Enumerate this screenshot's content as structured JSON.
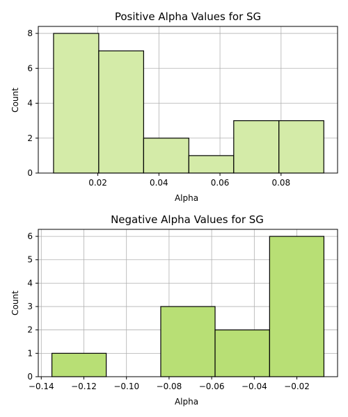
{
  "chart_data": [
    {
      "type": "bar",
      "title": "Positive Alpha Values for SG",
      "xlabel": "Alpha",
      "ylabel": "Count",
      "bin_edges": [
        0.0055,
        0.0203,
        0.035,
        0.0498,
        0.0645,
        0.0793,
        0.094
      ],
      "values": [
        8,
        7,
        2,
        1,
        3,
        3
      ],
      "xlim": [
        0.0005,
        0.0985
      ],
      "ylim": [
        0,
        8.4
      ],
      "xticks": [
        0.02,
        0.04,
        0.06,
        0.08
      ],
      "xtick_labels": [
        "0.02",
        "0.04",
        "0.06",
        "0.08"
      ],
      "yticks": [
        0,
        2,
        4,
        6,
        8
      ],
      "ytick_labels": [
        "0",
        "2",
        "4",
        "6",
        "8"
      ],
      "grid": true,
      "bar_color": "#d4eba8",
      "edge_color": "#000000"
    },
    {
      "type": "bar",
      "title": "Negative Alpha Values for SG",
      "xlabel": "Alpha",
      "ylabel": "Count",
      "bin_edges": [
        -0.135,
        -0.1095,
        -0.0839,
        -0.0584,
        -0.0328,
        -0.0073
      ],
      "values": [
        1,
        0,
        3,
        2,
        6
      ],
      "xlim": [
        -0.1414,
        -0.0009
      ],
      "ylim": [
        0,
        6.3
      ],
      "xticks": [
        -0.14,
        -0.12,
        -0.1,
        -0.08,
        -0.06,
        -0.04,
        -0.02
      ],
      "xtick_labels": [
        "−0.14",
        "−0.12",
        "−0.10",
        "−0.08",
        "−0.06",
        "−0.04",
        "−0.02"
      ],
      "yticks": [
        0,
        1,
        2,
        3,
        4,
        5,
        6
      ],
      "ytick_labels": [
        "0",
        "1",
        "2",
        "3",
        "4",
        "5",
        "6"
      ],
      "grid": true,
      "bar_color": "#b8df75",
      "edge_color": "#000000"
    }
  ]
}
